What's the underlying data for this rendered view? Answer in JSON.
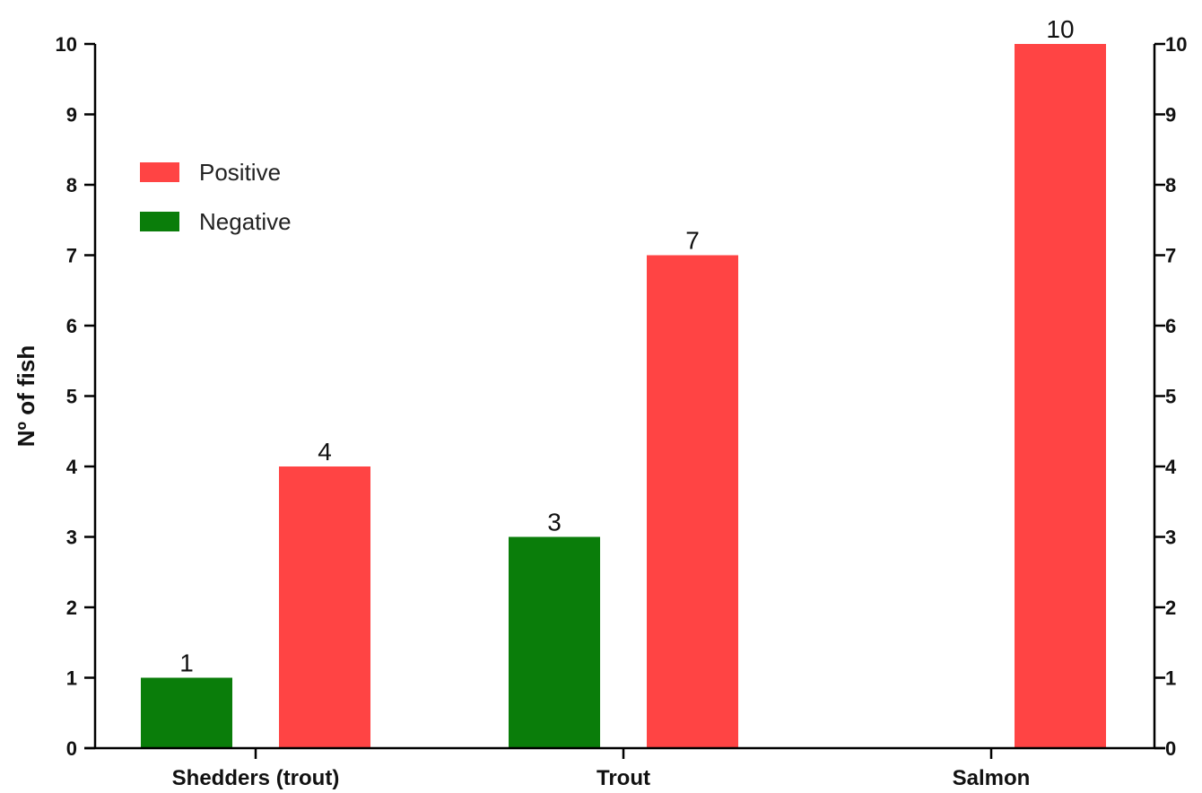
{
  "chart_data": {
    "type": "bar",
    "categories": [
      "Shedders (trout)",
      "Trout",
      "Salmon"
    ],
    "series": [
      {
        "name": "Negative",
        "values": [
          1,
          3,
          0
        ],
        "color": "#0a7d0a"
      },
      {
        "name": "Positive",
        "values": [
          4,
          7,
          10
        ],
        "color": "#ff4444"
      }
    ],
    "data_labels": [
      {
        "text": "1",
        "category": "Shedders (trout)",
        "series": "Negative"
      },
      {
        "text": "4",
        "category": "Shedders (trout)",
        "series": "Positive"
      },
      {
        "text": "3",
        "category": "Trout",
        "series": "Negative"
      },
      {
        "text": "7",
        "category": "Trout",
        "series": "Positive"
      },
      {
        "text": "10",
        "category": "Salmon",
        "series": "Positive"
      }
    ],
    "legend": {
      "position": "top-left",
      "entries": [
        {
          "label": "Positive",
          "color": "#ff4444"
        },
        {
          "label": "Negative",
          "color": "#0a7d0a"
        }
      ]
    },
    "title": "",
    "xlabel": "",
    "ylabel": "Nº of fish",
    "ylim": [
      0,
      10
    ],
    "yticks": [
      "0",
      "1",
      "2",
      "3",
      "4",
      "5",
      "6",
      "7",
      "8",
      "9",
      "10"
    ],
    "secondary_y_axis": true,
    "grid": false
  }
}
